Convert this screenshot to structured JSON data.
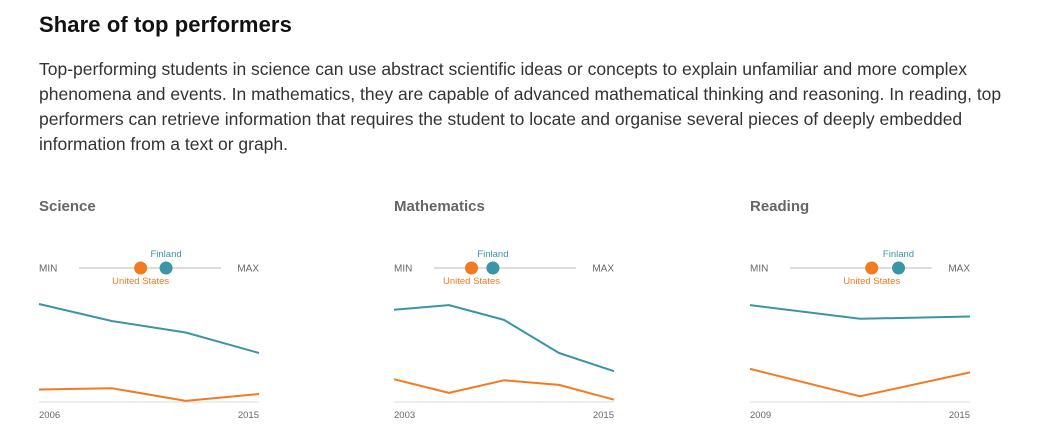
{
  "header": {
    "title": "Share of top performers",
    "description": "Top-performing students in science can use abstract scientific ideas or concepts to explain unfamiliar and more complex phenomena and events. In mathematics, they are capable of advanced mathematical thinking and reasoning. In reading, top performers can retrieve information that requires the student to locate and organise several pieces of deeply embedded information from a text or graph."
  },
  "legend": {
    "min_label": "MIN",
    "max_label": "MAX",
    "country_a": "Finland",
    "country_b": "United States"
  },
  "colors": {
    "finland": "#3a95a6",
    "united_states": "#f47a20",
    "track": "#dddddd",
    "axis": "#dddddd",
    "muted_text": "#666666"
  },
  "chart_data": [
    {
      "type": "line",
      "title": "Science",
      "x": [
        2006,
        2009,
        2012,
        2015
      ],
      "x_tick_labels": [
        "2006",
        "2015"
      ],
      "ylim": [
        0,
        1
      ],
      "series": [
        {
          "name": "Finland",
          "values": [
            0.86,
            0.71,
            0.61,
            0.43
          ]
        },
        {
          "name": "United States",
          "values": [
            0.11,
            0.12,
            0.01,
            0.07
          ]
        }
      ],
      "indicator": {
        "Finland": 0.62,
        "United States": 0.43
      }
    },
    {
      "type": "line",
      "title": "Mathematics",
      "x": [
        2003,
        2006,
        2009,
        2012,
        2015
      ],
      "x_tick_labels": [
        "2003",
        "2015"
      ],
      "ylim": [
        0,
        1
      ],
      "series": [
        {
          "name": "Finland",
          "values": [
            0.81,
            0.85,
            0.72,
            0.43,
            0.27
          ]
        },
        {
          "name": "United States",
          "values": [
            0.2,
            0.08,
            0.19,
            0.15,
            0.02
          ]
        }
      ],
      "indicator": {
        "Finland": 0.41,
        "United States": 0.25
      }
    },
    {
      "type": "line",
      "title": "Reading",
      "x": [
        2009,
        2012,
        2015
      ],
      "x_tick_labels": [
        "2009",
        "2015"
      ],
      "ylim": [
        0,
        1
      ],
      "series": [
        {
          "name": "Finland",
          "values": [
            0.85,
            0.73,
            0.75
          ]
        },
        {
          "name": "United States",
          "values": [
            0.29,
            0.05,
            0.26
          ]
        }
      ],
      "indicator": {
        "Finland": 0.78,
        "United States": 0.58
      }
    }
  ]
}
